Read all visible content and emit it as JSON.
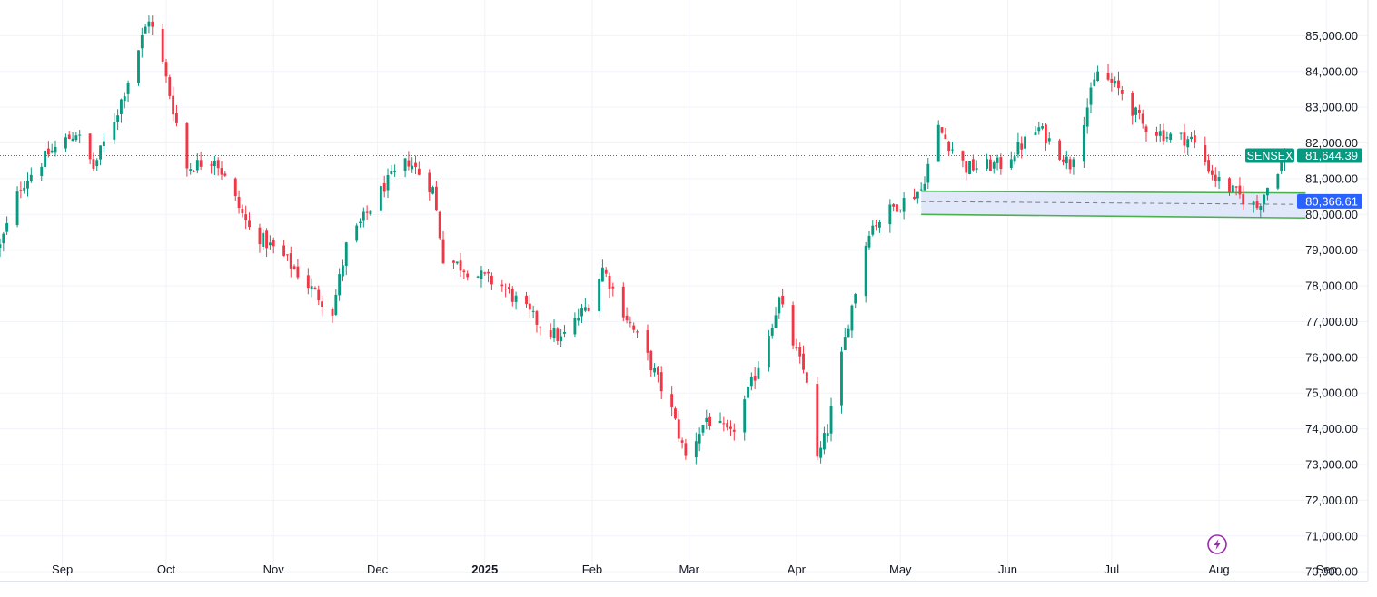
{
  "chart_data": {
    "type": "candlestick",
    "symbol": "SENSEX",
    "last_price_label": "81,644.39",
    "last_price": 81644.39,
    "level_label": "80,366.61",
    "level_price": 80366.61,
    "ylim": [
      69750,
      86000
    ],
    "y_ticks": [
      70000,
      71000,
      72000,
      73000,
      74000,
      75000,
      76000,
      77000,
      78000,
      79000,
      80000,
      81000,
      82000,
      83000,
      84000,
      85000
    ],
    "y_tick_labels": [
      "70,000.00",
      "71,000.00",
      "72,000.00",
      "73,000.00",
      "74,000.00",
      "75,000.00",
      "76,000.00",
      "77,000.00",
      "78,000.00",
      "79,000.00",
      "80,000.00",
      "81,000.00",
      "82,000.00",
      "83,000.00",
      "84,000.00",
      "85,000.00"
    ],
    "x_range": [
      "2024-08-14",
      "2025-09-13"
    ],
    "x_ticks": [
      {
        "date": "2024-09-01",
        "label": "Sep"
      },
      {
        "date": "2024-10-01",
        "label": "Oct"
      },
      {
        "date": "2024-11-01",
        "label": "Nov"
      },
      {
        "date": "2024-12-01",
        "label": "Dec"
      },
      {
        "date": "2025-01-01",
        "label": "2025",
        "bold": true
      },
      {
        "date": "2025-02-01",
        "label": "Feb"
      },
      {
        "date": "2025-03-01",
        "label": "Mar"
      },
      {
        "date": "2025-04-01",
        "label": "Apr"
      },
      {
        "date": "2025-05-01",
        "label": "May"
      },
      {
        "date": "2025-06-01",
        "label": "Jun"
      },
      {
        "date": "2025-07-01",
        "label": "Jul"
      },
      {
        "date": "2025-08-01",
        "label": "Aug"
      },
      {
        "date": "2025-09-01",
        "label": "Sep"
      }
    ],
    "close_path": [
      [
        "2024-08-14",
        79100
      ],
      [
        "2024-08-20",
        80800
      ],
      [
        "2024-08-28",
        81700
      ],
      [
        "2024-09-05",
        82300
      ],
      [
        "2024-09-10",
        81300
      ],
      [
        "2024-09-17",
        82900
      ],
      [
        "2024-09-26",
        85500
      ],
      [
        "2024-09-30",
        84200
      ],
      [
        "2024-10-07",
        81300
      ],
      [
        "2024-10-15",
        81600
      ],
      [
        "2024-10-25",
        79600
      ],
      [
        "2024-11-04",
        78800
      ],
      [
        "2024-11-13",
        77800
      ],
      [
        "2024-11-18",
        77300
      ],
      [
        "2024-11-22",
        79100
      ],
      [
        "2024-12-03",
        80800
      ],
      [
        "2024-12-10",
        81500
      ],
      [
        "2024-12-17",
        80700
      ],
      [
        "2024-12-20",
        78800
      ],
      [
        "2024-12-30",
        78300
      ],
      [
        "2025-01-06",
        78000
      ],
      [
        "2025-01-10",
        77600
      ],
      [
        "2025-01-16",
        77000
      ],
      [
        "2025-01-23",
        76500
      ],
      [
        "2025-01-31",
        77500
      ],
      [
        "2025-02-04",
        78500
      ],
      [
        "2025-02-10",
        77300
      ],
      [
        "2025-02-17",
        76000
      ],
      [
        "2025-02-24",
        74500
      ],
      [
        "2025-02-28",
        73200
      ],
      [
        "2025-03-06",
        74300
      ],
      [
        "2025-03-13",
        73800
      ],
      [
        "2025-03-20",
        75500
      ],
      [
        "2025-03-27",
        77600
      ],
      [
        "2025-04-01",
        76100
      ],
      [
        "2025-04-04",
        75400
      ],
      [
        "2025-04-07",
        73100
      ],
      [
        "2025-04-10",
        74000
      ],
      [
        "2025-04-16",
        77000
      ],
      [
        "2025-04-22",
        79600
      ],
      [
        "2025-04-29",
        80200
      ],
      [
        "2025-05-07",
        80700
      ],
      [
        "2025-05-12",
        82400
      ],
      [
        "2025-05-20",
        81300
      ],
      [
        "2025-05-30",
        81400
      ],
      [
        "2025-06-10",
        82400
      ],
      [
        "2025-06-19",
        81400
      ],
      [
        "2025-06-27",
        84000
      ],
      [
        "2025-07-04",
        83400
      ],
      [
        "2025-07-10",
        82500
      ],
      [
        "2025-07-17",
        82200
      ],
      [
        "2025-07-24",
        82100
      ],
      [
        "2025-07-31",
        81000
      ],
      [
        "2025-08-07",
        80500
      ],
      [
        "2025-08-12",
        80200
      ],
      [
        "2025-08-14",
        80600
      ],
      [
        "2025-08-18",
        81300
      ],
      [
        "2025-08-20",
        81644
      ]
    ],
    "zone": {
      "top": [
        [
          "2025-05-07",
          80650
        ],
        [
          "2025-08-26",
          80600
        ]
      ],
      "bottom": [
        [
          "2025-05-07",
          80000
        ],
        [
          "2025-08-26",
          79900
        ]
      ],
      "mid": [
        [
          "2025-05-07",
          80360
        ],
        [
          "2025-08-26",
          80280
        ]
      ]
    },
    "colors": {
      "up": "#089981",
      "down": "#f23645",
      "grid": "#f0f3fa",
      "zone_fill": "#dbe4f8",
      "zone_line": "#4caf50",
      "price_badge": "#089981",
      "level_badge": "#2962ff",
      "lightning": "#9c27b0"
    }
  }
}
